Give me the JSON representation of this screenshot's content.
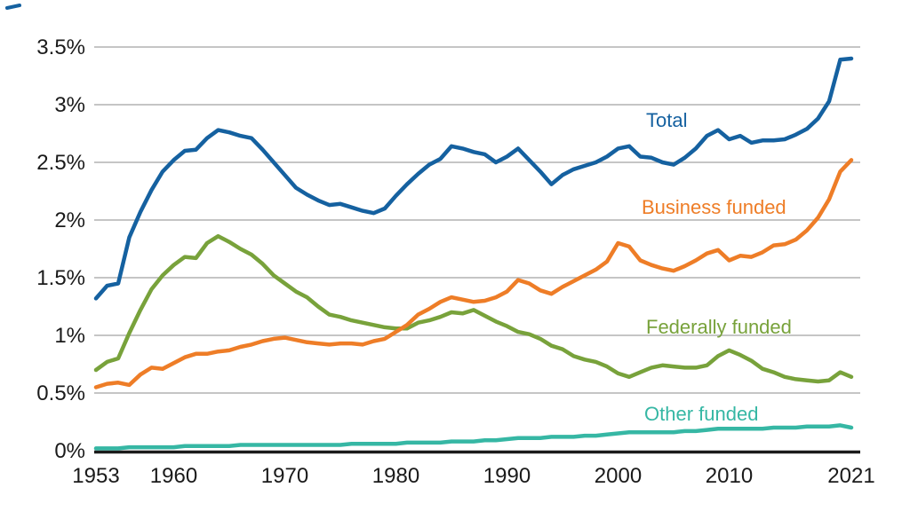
{
  "page": {
    "background": "#ffffff"
  },
  "chart_data": {
    "type": "line",
    "title": "",
    "xlabel": "",
    "ylabel": "",
    "xlim": [
      1953,
      2021
    ],
    "ylim": [
      0,
      3.5
    ],
    "grid": "horizontal",
    "gridline_color": "#b2b2b2",
    "axis_color": "#1b1b1b",
    "tick_color": "#1a1a1a",
    "legend": "inline-labels",
    "x_ticks": [
      1953,
      1960,
      1970,
      1980,
      1990,
      2000,
      2010,
      2021
    ],
    "x_tick_labels": [
      "1953",
      "1960",
      "1970",
      "1980",
      "1990",
      "2000",
      "2010",
      "2021"
    ],
    "y_ticks": [
      0,
      0.5,
      1,
      1.5,
      2,
      2.5,
      3,
      3.5
    ],
    "y_tick_labels": [
      "0%",
      "0.5%",
      "1%",
      "1.5%",
      "2%",
      "2.5%",
      "3%",
      "3.5%"
    ],
    "x": [
      1953,
      1954,
      1955,
      1956,
      1957,
      1958,
      1959,
      1960,
      1961,
      1962,
      1963,
      1964,
      1965,
      1966,
      1967,
      1968,
      1969,
      1970,
      1971,
      1972,
      1973,
      1974,
      1975,
      1976,
      1977,
      1978,
      1979,
      1980,
      1981,
      1982,
      1983,
      1984,
      1985,
      1986,
      1987,
      1988,
      1989,
      1990,
      1991,
      1992,
      1993,
      1994,
      1995,
      1996,
      1997,
      1998,
      1999,
      2000,
      2001,
      2002,
      2003,
      2004,
      2005,
      2006,
      2007,
      2008,
      2009,
      2010,
      2011,
      2012,
      2013,
      2014,
      2015,
      2016,
      2017,
      2018,
      2019,
      2020,
      2021
    ],
    "series": [
      {
        "name": "Total",
        "color": "#1561a0",
        "values": [
          1.32,
          1.43,
          1.45,
          1.85,
          2.07,
          2.26,
          2.42,
          2.52,
          2.6,
          2.61,
          2.71,
          2.78,
          2.76,
          2.73,
          2.71,
          2.61,
          2.5,
          2.39,
          2.28,
          2.22,
          2.17,
          2.13,
          2.14,
          2.11,
          2.08,
          2.06,
          2.1,
          2.21,
          2.31,
          2.4,
          2.48,
          2.53,
          2.64,
          2.62,
          2.59,
          2.57,
          2.5,
          2.55,
          2.62,
          2.52,
          2.42,
          2.31,
          2.39,
          2.44,
          2.47,
          2.5,
          2.55,
          2.62,
          2.64,
          2.55,
          2.54,
          2.5,
          2.48,
          2.54,
          2.62,
          2.73,
          2.78,
          2.7,
          2.73,
          2.67,
          2.69,
          2.69,
          2.7,
          2.74,
          2.79,
          2.88,
          3.03,
          3.39,
          3.4
        ]
      },
      {
        "name": "Federally funded",
        "color": "#78a23b",
        "values": [
          0.7,
          0.77,
          0.8,
          1.02,
          1.22,
          1.4,
          1.52,
          1.61,
          1.68,
          1.67,
          1.8,
          1.86,
          1.81,
          1.75,
          1.7,
          1.62,
          1.52,
          1.45,
          1.38,
          1.33,
          1.25,
          1.18,
          1.16,
          1.13,
          1.11,
          1.09,
          1.07,
          1.06,
          1.06,
          1.11,
          1.13,
          1.16,
          1.2,
          1.19,
          1.22,
          1.17,
          1.12,
          1.08,
          1.03,
          1.01,
          0.97,
          0.91,
          0.88,
          0.82,
          0.79,
          0.77,
          0.73,
          0.67,
          0.64,
          0.68,
          0.72,
          0.74,
          0.73,
          0.72,
          0.72,
          0.74,
          0.82,
          0.87,
          0.83,
          0.78,
          0.71,
          0.68,
          0.64,
          0.62,
          0.61,
          0.6,
          0.61,
          0.68,
          0.64
        ]
      },
      {
        "name": "Business funded",
        "color": "#ee7d27",
        "values": [
          0.55,
          0.58,
          0.59,
          0.57,
          0.66,
          0.72,
          0.71,
          0.76,
          0.81,
          0.84,
          0.84,
          0.86,
          0.87,
          0.9,
          0.92,
          0.95,
          0.97,
          0.98,
          0.96,
          0.94,
          0.93,
          0.92,
          0.93,
          0.93,
          0.92,
          0.95,
          0.97,
          1.03,
          1.09,
          1.18,
          1.23,
          1.29,
          1.33,
          1.31,
          1.29,
          1.3,
          1.33,
          1.38,
          1.48,
          1.45,
          1.39,
          1.36,
          1.42,
          1.47,
          1.52,
          1.57,
          1.64,
          1.8,
          1.77,
          1.65,
          1.61,
          1.58,
          1.56,
          1.6,
          1.65,
          1.71,
          1.74,
          1.65,
          1.69,
          1.68,
          1.72,
          1.78,
          1.79,
          1.83,
          1.91,
          2.02,
          2.18,
          2.42,
          2.52
        ]
      },
      {
        "name": "Other funded",
        "color": "#36b7a4",
        "values": [
          0.02,
          0.02,
          0.02,
          0.03,
          0.03,
          0.03,
          0.03,
          0.03,
          0.04,
          0.04,
          0.04,
          0.04,
          0.04,
          0.05,
          0.05,
          0.05,
          0.05,
          0.05,
          0.05,
          0.05,
          0.05,
          0.05,
          0.05,
          0.06,
          0.06,
          0.06,
          0.06,
          0.06,
          0.07,
          0.07,
          0.07,
          0.07,
          0.08,
          0.08,
          0.08,
          0.09,
          0.09,
          0.1,
          0.11,
          0.11,
          0.11,
          0.12,
          0.12,
          0.12,
          0.13,
          0.13,
          0.14,
          0.15,
          0.16,
          0.16,
          0.16,
          0.16,
          0.16,
          0.17,
          0.17,
          0.18,
          0.19,
          0.19,
          0.19,
          0.19,
          0.19,
          0.2,
          0.2,
          0.2,
          0.21,
          0.21,
          0.21,
          0.22,
          0.2
        ]
      }
    ],
    "annotations": [
      {
        "text": "Total",
        "series": "Total",
        "color": "#1561a0"
      },
      {
        "text": "Business funded",
        "series": "Business funded",
        "color": "#ee7d27"
      },
      {
        "text": "Federally funded",
        "series": "Federally funded",
        "color": "#78a23b"
      },
      {
        "text": "Other funded",
        "series": "Other funded",
        "color": "#36b7a4"
      }
    ]
  }
}
